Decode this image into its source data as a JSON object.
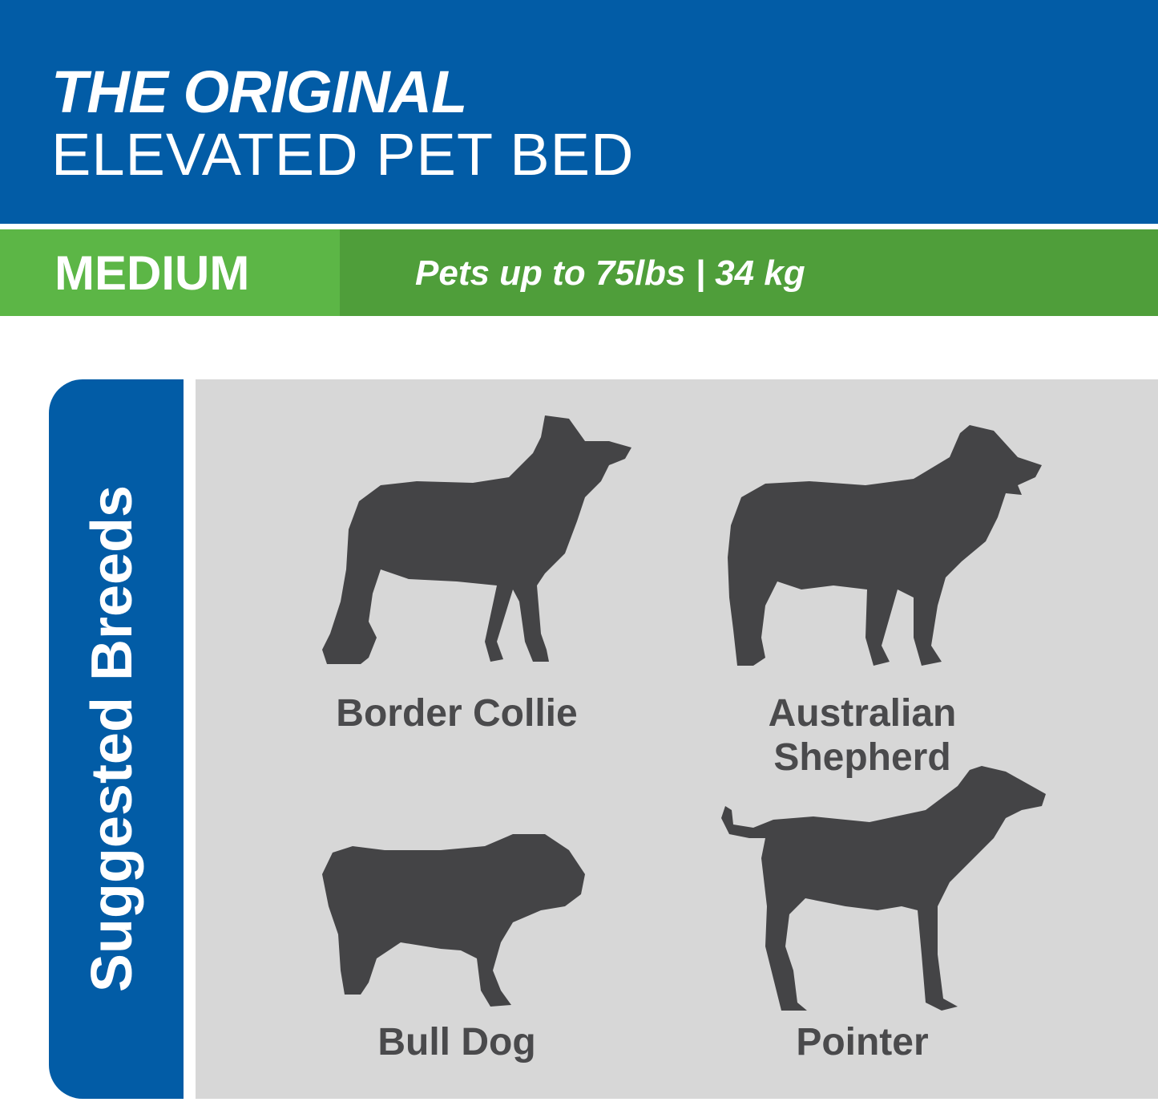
{
  "header": {
    "title_line1": "THE ORIGINAL",
    "title_line2": "ELEVATED PET BED"
  },
  "size_bar": {
    "size": "MEDIUM",
    "capacity": "Pets up to 75lbs | 34 kg"
  },
  "suggested": {
    "label": "Suggested Breeds",
    "breeds": [
      {
        "name": "Border Collie",
        "icon": "border-collie-silhouette-icon"
      },
      {
        "name": "Australian Shepherd",
        "icon": "australian-shepherd-silhouette-icon"
      },
      {
        "name": "Bull Dog",
        "icon": "bulldog-silhouette-icon"
      },
      {
        "name": "Pointer",
        "icon": "pointer-silhouette-icon"
      }
    ]
  },
  "colors": {
    "blue": "#025ca6",
    "green_light": "#5cb646",
    "green_dark": "#4f9e3a",
    "panel_gray": "#d7d7d7",
    "silhouette": "#444446"
  }
}
